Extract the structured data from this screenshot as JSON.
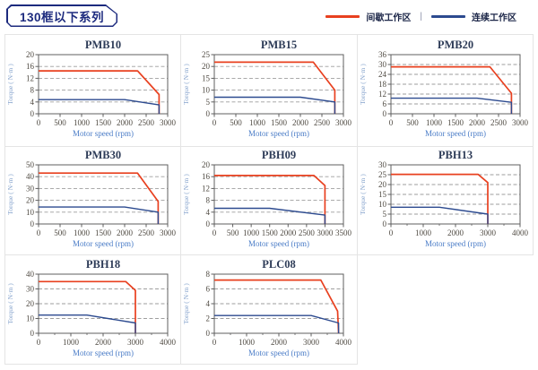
{
  "page": {
    "title": "130框以下系列"
  },
  "legend": {
    "separator": "|",
    "items": [
      {
        "label": "间歇工作区",
        "color": "#e8401f"
      },
      {
        "label": "连续工作区",
        "color": "#2c4a8f"
      }
    ]
  },
  "colors": {
    "intermittent_line": "#e8401f",
    "continuous_line": "#2c4a8f",
    "chart_title": "#2e3c58",
    "tick_label": "#4f4a42",
    "x_axis_label": "#4a7cc7",
    "y_axis_label": "#85a3cc",
    "gridline": "#9e9e9e",
    "plot_border": "#5f5f5f",
    "cell_border": "#e4e4e4",
    "header_navy": "#1c2a7e"
  },
  "chart_data": [
    {
      "type": "line",
      "title": "PMB10",
      "xlabel": "Motor speed (rpm)",
      "ylabel": "Torque ( N·m )",
      "xlim": [
        0,
        3000
      ],
      "ylim": [
        0,
        20
      ],
      "xtick_step": 500,
      "ytick_step": 4,
      "grid": "horizontal-dashed",
      "legend_position": "none",
      "series": [
        {
          "name": "间歇工作区",
          "color": "#e8401f",
          "points": [
            [
              0,
              14.5
            ],
            [
              2300,
              14.5
            ],
            [
              2800,
              6.5
            ],
            [
              2800,
              0
            ]
          ]
        },
        {
          "name": "连续工作区",
          "color": "#2c4a8f",
          "points": [
            [
              0,
              4.8
            ],
            [
              2000,
              4.8
            ],
            [
              2800,
              3.0
            ],
            [
              2800,
              0
            ]
          ]
        }
      ]
    },
    {
      "type": "line",
      "title": "PMB15",
      "xlabel": "Motor speed (rpm)",
      "ylabel": "Torque ( N·m )",
      "xlim": [
        0,
        3000
      ],
      "ylim": [
        0,
        25
      ],
      "xtick_step": 500,
      "ytick_step": 5,
      "grid": "horizontal-dashed",
      "legend_position": "none",
      "series": [
        {
          "name": "间歇工作区",
          "color": "#e8401f",
          "points": [
            [
              0,
              21.8
            ],
            [
              2300,
              21.8
            ],
            [
              2800,
              10.0
            ],
            [
              2800,
              0
            ]
          ]
        },
        {
          "name": "连续工作区",
          "color": "#2c4a8f",
          "points": [
            [
              0,
              7.0
            ],
            [
              2000,
              7.0
            ],
            [
              2800,
              5.0
            ],
            [
              2800,
              0
            ]
          ]
        }
      ]
    },
    {
      "type": "line",
      "title": "PMB20",
      "xlabel": "Motor speed (rpm)",
      "ylabel": "Torque ( N·m )",
      "xlim": [
        0,
        3000
      ],
      "ylim": [
        0,
        36
      ],
      "xtick_step": 500,
      "ytick_step": 6,
      "grid": "horizontal-dashed",
      "legend_position": "none",
      "series": [
        {
          "name": "间歇工作区",
          "color": "#e8401f",
          "points": [
            [
              0,
              28.6
            ],
            [
              2300,
              28.6
            ],
            [
              2800,
              12.5
            ],
            [
              2800,
              0
            ]
          ]
        },
        {
          "name": "连续工作区",
          "color": "#2c4a8f",
          "points": [
            [
              0,
              9.5
            ],
            [
              2000,
              9.5
            ],
            [
              2800,
              7.0
            ],
            [
              2800,
              0
            ]
          ]
        }
      ]
    },
    {
      "type": "line",
      "title": "PMB30",
      "xlabel": "Motor speed (rpm)",
      "ylabel": "Torque ( N·m )",
      "xlim": [
        0,
        3000
      ],
      "ylim": [
        0,
        50
      ],
      "xtick_step": 500,
      "ytick_step": 10,
      "grid": "horizontal-dashed",
      "legend_position": "none",
      "series": [
        {
          "name": "间歇工作区",
          "color": "#e8401f",
          "points": [
            [
              0,
              43.0
            ],
            [
              2300,
              43.0
            ],
            [
              2780,
              19.0
            ],
            [
              2780,
              0
            ]
          ]
        },
        {
          "name": "连续工作区",
          "color": "#2c4a8f",
          "points": [
            [
              0,
              14.3
            ],
            [
              2000,
              14.3
            ],
            [
              2780,
              10.0
            ],
            [
              2780,
              0
            ]
          ]
        }
      ]
    },
    {
      "type": "line",
      "title": "PBH09",
      "xlabel": "Motor speed (rpm)",
      "ylabel": "Torque ( N·m )",
      "xlim": [
        0,
        3500
      ],
      "ylim": [
        0,
        20
      ],
      "xtick_step": 500,
      "ytick_step": 4,
      "grid": "horizontal-dashed",
      "legend_position": "none",
      "series": [
        {
          "name": "间歇工作区",
          "color": "#e8401f",
          "points": [
            [
              0,
              16.4
            ],
            [
              2700,
              16.4
            ],
            [
              3000,
              13.0
            ],
            [
              3000,
              0
            ]
          ]
        },
        {
          "name": "连续工作区",
          "color": "#2c4a8f",
          "points": [
            [
              0,
              5.3
            ],
            [
              1500,
              5.3
            ],
            [
              3000,
              3.0
            ],
            [
              3000,
              0
            ]
          ]
        }
      ]
    },
    {
      "type": "line",
      "title": "PBH13",
      "xlabel": "Motor speed (rpm)",
      "ylabel": "Torque ( N·m )",
      "xlim": [
        0,
        4000
      ],
      "ylim": [
        0,
        30
      ],
      "xtick_step": 1000,
      "xminor_step": 500,
      "ytick_step": 5,
      "grid": "horizontal-dashed",
      "legend_position": "none",
      "series": [
        {
          "name": "间歇工作区",
          "color": "#e8401f",
          "points": [
            [
              0,
              25.2
            ],
            [
              2700,
              25.2
            ],
            [
              3000,
              21.0
            ],
            [
              3000,
              0
            ]
          ]
        },
        {
          "name": "连续工作区",
          "color": "#2c4a8f",
          "points": [
            [
              0,
              8.5
            ],
            [
              1500,
              8.5
            ],
            [
              3000,
              5.0
            ],
            [
              3000,
              0
            ]
          ]
        }
      ]
    },
    {
      "type": "line",
      "title": "PBH18",
      "xlabel": "Motor speed (rpm)",
      "ylabel": "Torque ( N·m )",
      "xlim": [
        0,
        4000
      ],
      "ylim": [
        0,
        40
      ],
      "xtick_step": 1000,
      "xminor_step": 500,
      "ytick_step": 10,
      "grid": "horizontal-dashed",
      "legend_position": "none",
      "series": [
        {
          "name": "间歇工作区",
          "color": "#e8401f",
          "points": [
            [
              0,
              35.0
            ],
            [
              2700,
              35.0
            ],
            [
              3000,
              29.0
            ],
            [
              3000,
              0
            ]
          ]
        },
        {
          "name": "连续工作区",
          "color": "#2c4a8f",
          "points": [
            [
              0,
              12.3
            ],
            [
              1500,
              12.3
            ],
            [
              3000,
              7.0
            ],
            [
              3000,
              0
            ]
          ]
        }
      ]
    },
    {
      "type": "line",
      "title": "PLC08",
      "xlabel": "Motor speed (rpm)",
      "ylabel": "Torque ( N·m )",
      "xlim": [
        0,
        4000
      ],
      "ylim": [
        0,
        8
      ],
      "xtick_step": 1000,
      "xminor_step": 500,
      "ytick_step": 2,
      "grid": "horizontal-dashed",
      "legend_position": "none",
      "series": [
        {
          "name": "间歇工作区",
          "color": "#e8401f",
          "points": [
            [
              0,
              7.2
            ],
            [
              3300,
              7.2
            ],
            [
              3820,
              3.0
            ],
            [
              3850,
              0
            ]
          ]
        },
        {
          "name": "连续工作区",
          "color": "#2c4a8f",
          "points": [
            [
              0,
              2.4
            ],
            [
              3000,
              2.4
            ],
            [
              3850,
              1.4
            ],
            [
              3850,
              0
            ]
          ]
        }
      ]
    }
  ]
}
